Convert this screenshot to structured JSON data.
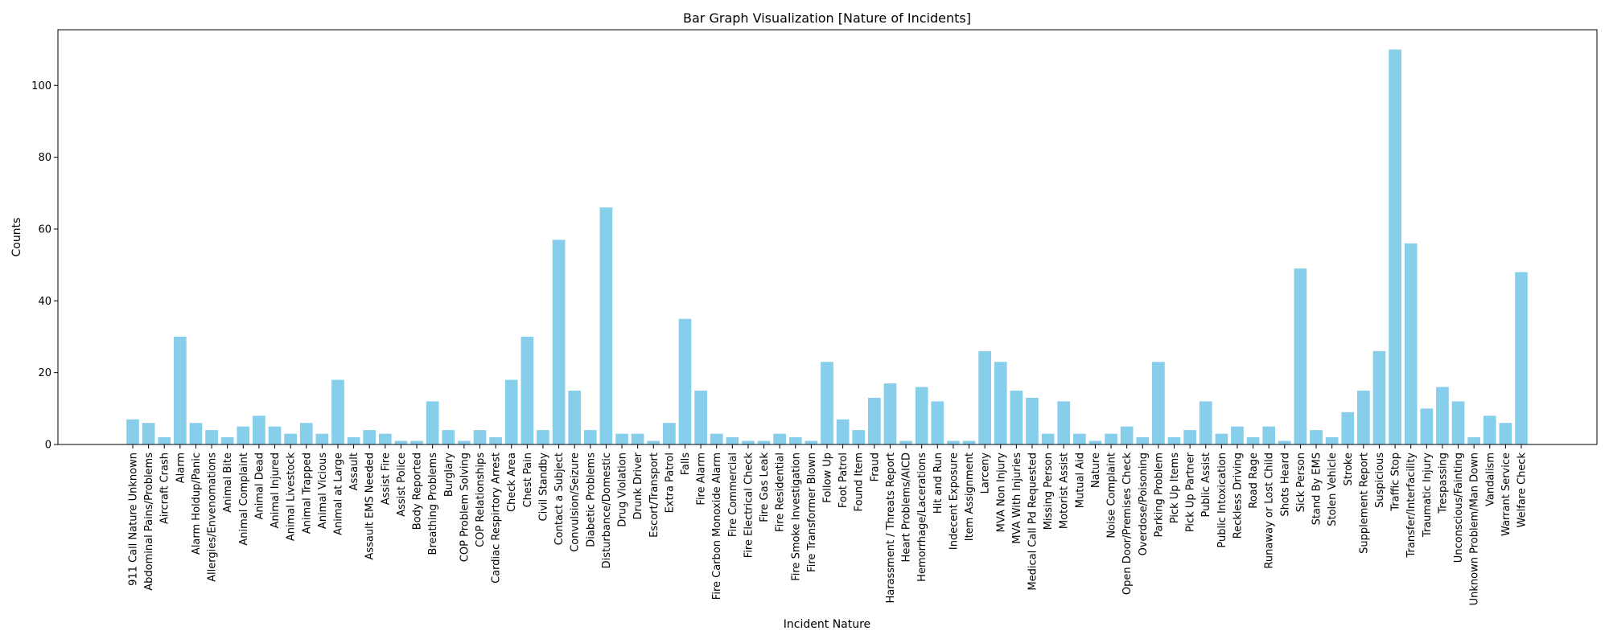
{
  "chart_data": {
    "type": "bar",
    "title": "Bar Graph Visualization [Nature of Incidents]",
    "xlabel": "Incident Nature",
    "ylabel": "Counts",
    "ylim": [
      0,
      115.5
    ],
    "yticks": [
      0,
      20,
      40,
      60,
      80,
      100
    ],
    "grid": false,
    "bar_color": "#87CEEB",
    "categories": [
      "911 Call Nature Unknown",
      "Abdominal Pains/Problems",
      "Aircraft Crash",
      "Alarm",
      "Alarm Holdup/Panic",
      "Allergies/Envenomations",
      "Animal Bite",
      "Animal Complaint",
      "Animal Dead",
      "Animal Injured",
      "Animal Livestock",
      "Animal Trapped",
      "Animal Vicious",
      "Animal at Large",
      "Assault",
      "Assault EMS Needed",
      "Assist Fire",
      "Assist Police",
      "Body Reported",
      "Breathing Problems",
      "Burglary",
      "COP Problem Solving",
      "COP Relationships",
      "Cardiac Respirtory Arrest",
      "Check Area",
      "Chest Pain",
      "Civil Standby",
      "Contact a Subject",
      "Convulsion/Seizure",
      "Diabetic Problems",
      "Disturbance/Domestic",
      "Drug Violation",
      "Drunk Driver",
      "Escort/Transport",
      "Extra Patrol",
      "Falls",
      "Fire Alarm",
      "Fire Carbon Monoxide Alarm",
      "Fire Commercial",
      "Fire Electrical Check",
      "Fire Gas Leak",
      "Fire Residential",
      "Fire Smoke Investigation",
      "Fire Transformer Blown",
      "Follow Up",
      "Foot Patrol",
      "Found Item",
      "Fraud",
      "Harassment / Threats Report",
      "Heart Problems/AICD",
      "Hemorrhage/Lacerations",
      "Hit and Run",
      "Indecent Exposure",
      "Item Assignment",
      "Larceny",
      "MVA Non Injury",
      "MVA With Injuries",
      "Medical Call Pd Requested",
      "Missing Person",
      "Motorist Assist",
      "Mutual Aid",
      "Nature",
      "Noise Complaint",
      "Open Door/Premises Check",
      "Overdose/Poisoning",
      "Parking Problem",
      "Pick Up Items",
      "Pick Up Partner",
      "Public Assist",
      "Public Intoxication",
      "Reckless Driving",
      "Road Rage",
      "Runaway or Lost Child",
      "Shots Heard",
      "Sick Person",
      "Stand By EMS",
      "Stolen Vehicle",
      "Stroke",
      "Supplement Report",
      "Suspicious",
      "Traffic Stop",
      "Transfer/Interfacility",
      "Traumatic Injury",
      "Trespassing",
      "Unconscious/Fainting",
      "Unknown Problem/Man Down",
      "Vandalism",
      "Warrant Service",
      "Welfare Check"
    ],
    "values": [
      7,
      6,
      2,
      30,
      6,
      4,
      2,
      5,
      8,
      5,
      3,
      6,
      3,
      18,
      2,
      4,
      3,
      1,
      1,
      12,
      4,
      1,
      4,
      2,
      18,
      30,
      4,
      57,
      15,
      4,
      66,
      3,
      3,
      1,
      6,
      35,
      15,
      3,
      2,
      1,
      1,
      3,
      2,
      1,
      23,
      7,
      4,
      13,
      17,
      1,
      16,
      12,
      1,
      1,
      26,
      23,
      15,
      13,
      3,
      12,
      3,
      1,
      3,
      5,
      2,
      23,
      2,
      4,
      12,
      3,
      5,
      2,
      5,
      1,
      49,
      4,
      2,
      9,
      15,
      26,
      110,
      56,
      10,
      16,
      12,
      2,
      8,
      6,
      48
    ]
  }
}
